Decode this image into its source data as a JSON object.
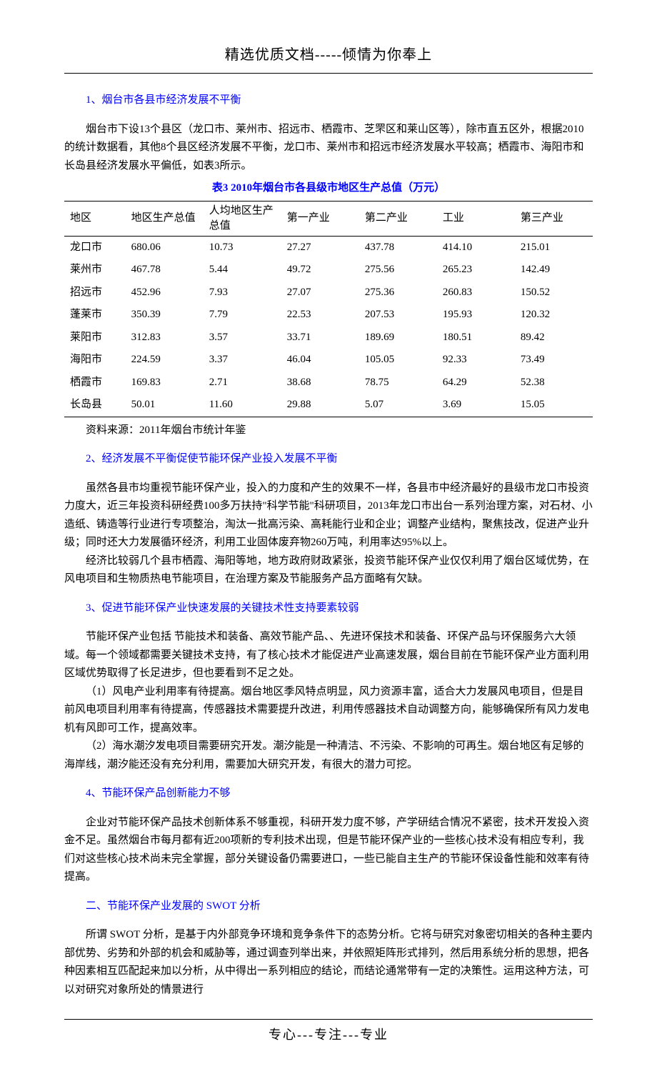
{
  "header": {
    "title": "精选优质文档-----倾情为你奉上"
  },
  "section1": {
    "heading": "1、烟台市各县市经济发展不平衡",
    "para1": "烟台市下设13个县区（龙口市、莱州市、招远市、栖霞市、芝罘区和莱山区等），除市直五区外，根据2010的统计数据看，其他8个县区经济发展不平衡，龙口市、莱州市和招远市经济发展水平较高；栖霞市、海阳市和长岛县经济发展水平偏低，如表3所示。"
  },
  "table": {
    "caption": "表3 2010年烟台市各县级市地区生产总值（万元）",
    "columns": [
      "地区",
      "地区生产总值",
      "人均地区生产总值",
      "第一产业",
      "第二产业",
      "工业",
      "第三产业"
    ],
    "rows": [
      [
        "龙口市",
        "680.06",
        "10.73",
        "27.27",
        "437.78",
        "414.10",
        "215.01"
      ],
      [
        "莱州市",
        "467.78",
        "5.44",
        "49.72",
        "275.56",
        "265.23",
        "142.49"
      ],
      [
        "招远市",
        "452.96",
        "7.93",
        "27.07",
        "275.36",
        "260.83",
        "150.52"
      ],
      [
        "蓬莱市",
        "350.39",
        "7.79",
        "22.53",
        "207.53",
        "195.93",
        "120.32"
      ],
      [
        "莱阳市",
        "312.83",
        "3.57",
        "33.71",
        "189.69",
        "180.51",
        "89.42"
      ],
      [
        "海阳市",
        "224.59",
        "3.37",
        "46.04",
        "105.05",
        "92.33",
        "73.49"
      ],
      [
        "栖霞市",
        "169.83",
        "2.71",
        "38.68",
        "78.75",
        "64.29",
        "52.38"
      ],
      [
        "长岛县",
        "50.01",
        "11.60",
        "29.88",
        "5.07",
        "3.69",
        "15.05"
      ]
    ],
    "source": "资料来源：2011年烟台市统计年鉴"
  },
  "section2": {
    "heading": "2、经济发展不平衡促使节能环保产业投入发展不平衡",
    "para1": "虽然各县市均重视节能环保产业，投入的力度和产生的效果不一样，各县市中经济最好的县级市龙口市投资力度大，近三年投资科研经费100多万扶持\"科学节能\"科研项目，2013年龙口市出台一系列治理方案，对石材、小造纸、铸造等行业进行专项整治，淘汰一批高污染、高耗能行业和企业；调整产业结构，聚焦技改，促进产业升级；同时还大力发展循环经济，利用工业固体废弃物260万吨，利用率达95%以上。",
    "para2": "经济比较弱几个县市栖霞、海阳等地，地方政府财政紧张，投资节能环保产业仅仅利用了烟台区域优势，在风电项目和生物质热电节能项目，在治理方案及节能服务产品方面略有欠缺。"
  },
  "section3": {
    "heading": "3、促进节能环保产业快速发展的关键技术性支持要素较弱",
    "para1": "节能环保产业包括 节能技术和装备、高效节能产品、、先进环保技术和装备、环保产品与环保服务六大领域。每一个领域都需要关键技术支持，有了核心技术才能促进产业高速发展，烟台目前在节能环保产业方面利用区域优势取得了长足进步，但也要看到不足之处。",
    "item1": "（1）风电产业利用率有待提高。烟台地区季风特点明显，风力资源丰富，适合大力发展风电项目，但是目前风电项目利用率有待提高，传感器技术需要提升改进，利用传感器技术自动调整方向，能够确保所有风力发电机有风即可工作，提高效率。",
    "item2": "（2）海水潮汐发电项目需要研究开发。潮汐能是一种清洁、不污染、不影响的可再生。烟台地区有足够的海岸线，潮汐能还没有充分利用，需要加大研究开发，有很大的潜力可挖。"
  },
  "section4": {
    "heading": "4、节能环保产品创新能力不够",
    "para1": "企业对节能环保产品技术创新体系不够重视，科研开发力度不够，产学研结合情况不紧密，技术开发投入资金不足。虽然烟台市每月都有近200项新的专利技术出现，但是节能环保产业的一些核心技术没有相应专利，我们对这些核心技术尚未完全掌握，部分关键设备仍需要进口，一些已能自主生产的节能环保设备性能和效率有待提高。"
  },
  "section5": {
    "heading": "二、节能环保产业发展的 SWOT 分析",
    "para1": "所谓 SWOT 分析，是基于内外部竞争环境和竞争条件下的态势分析。它将与研究对象密切相关的各种主要内部优势、劣势和外部的机会和威胁等，通过调查列举出来，并依照矩阵形式排列，然后用系统分析的思想，把各种因素相互匹配起来加以分析，从中得出一系列相应的结论，而结论通常带有一定的决策性。运用这种方法，可以对研究对象所处的情景进行"
  },
  "footer": {
    "text": "专心---专注---专业"
  }
}
